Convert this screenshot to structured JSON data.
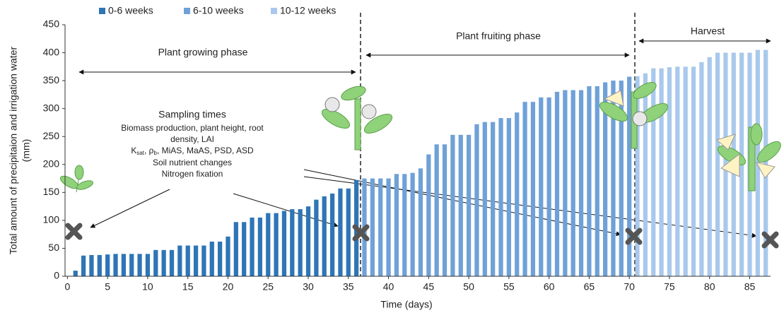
{
  "chart_data": {
    "type": "bar",
    "x_label": "Time (days)",
    "y_label": [
      "Total amount of precipitaion and irrigation water",
      "(mm)"
    ],
    "xlim": [
      -0.3,
      87.6
    ],
    "xticks": [
      0,
      5,
      10,
      15,
      20,
      25,
      30,
      35,
      40,
      45,
      50,
      55,
      60,
      65,
      70,
      75,
      80,
      85
    ],
    "ylim": [
      0,
      450
    ],
    "yticks": [
      0,
      50,
      100,
      150,
      200,
      250,
      300,
      350,
      400,
      450
    ],
    "grid": false,
    "series": [
      {
        "name": "0-6 weeks",
        "color": "#2e75b6",
        "x": [
          1,
          2,
          3,
          4,
          5,
          6,
          7,
          8,
          9,
          10,
          11,
          12,
          13,
          14,
          15,
          16,
          17,
          18,
          19,
          20,
          21,
          22,
          23,
          24,
          25,
          26,
          27,
          28,
          29,
          30,
          31,
          32,
          33,
          34,
          35,
          36
        ],
        "values": [
          10,
          37,
          38,
          38,
          39,
          40,
          40,
          40,
          40,
          40,
          47,
          47,
          47,
          55,
          55,
          55,
          55,
          62,
          62,
          71,
          97,
          97,
          105,
          105,
          113,
          113,
          117,
          120,
          120,
          125,
          137,
          143,
          148,
          157,
          157,
          172
        ]
      },
      {
        "name": "6-10 weeks",
        "color": "#6fa1d8",
        "x": [
          37,
          38,
          39,
          40,
          41,
          42,
          43,
          44,
          45,
          46,
          47,
          48,
          49,
          50,
          51,
          52,
          53,
          54,
          55,
          56,
          57,
          58,
          59,
          60,
          61,
          62,
          63,
          64,
          65,
          66,
          67,
          68,
          69,
          70
        ],
        "values": [
          175,
          175,
          175,
          175,
          183,
          183,
          185,
          193,
          218,
          236,
          236,
          253,
          253,
          253,
          272,
          276,
          276,
          283,
          283,
          293,
          312,
          312,
          320,
          320,
          330,
          333,
          333,
          333,
          340,
          340,
          347,
          350,
          350,
          357
        ]
      },
      {
        "name": "10-12 weeks",
        "color": "#a9c9ec",
        "x": [
          71,
          72,
          73,
          74,
          75,
          76,
          77,
          78,
          79,
          80,
          81,
          82,
          83,
          84,
          85,
          86,
          87
        ],
        "values": [
          358,
          363,
          372,
          372,
          374,
          375,
          375,
          375,
          383,
          392,
          400,
          400,
          400,
          400,
          400,
          405,
          405
        ]
      }
    ],
    "annotations": {
      "phases": [
        "Plant growing phase",
        "Plant fruiting phase",
        "Harvest"
      ],
      "sampling_title": "Sampling times",
      "sampling_lines": [
        "Biomass production, plant height, root",
        "density, LAI"
      ],
      "sampling_ksat": [
        "K",
        "sat",
        ", ρ",
        "b",
        ", MiAS, MaAS, PSD, ASD"
      ],
      "sampling_more": [
        "Soil nutrient changes",
        "Nitrogen fixation"
      ]
    }
  }
}
